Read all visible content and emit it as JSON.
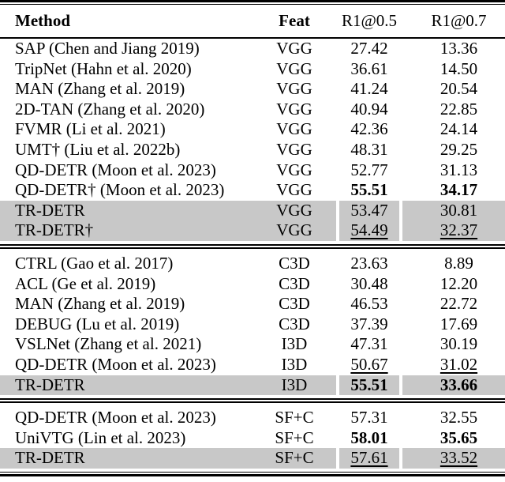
{
  "table": {
    "header": {
      "method": "Method",
      "feat": "Feat",
      "r1_05": "R1@0.5",
      "r1_07": "R1@0.7"
    },
    "colors": {
      "highlight_row": "#c8c8c8",
      "rule": "#000000",
      "text": "#000000",
      "background": "#ffffff"
    },
    "sections": [
      {
        "name": "vgg",
        "rows": [
          {
            "method": "SAP (Chen and Jiang 2019)",
            "feat": "VGG",
            "r1_05": "27.42",
            "r1_07": "13.36",
            "emphasis": "none",
            "highlight": false
          },
          {
            "method": "TripNet (Hahn et al. 2020)",
            "feat": "VGG",
            "r1_05": "36.61",
            "r1_07": "14.50",
            "emphasis": "none",
            "highlight": false
          },
          {
            "method": "MAN (Zhang et al. 2019)",
            "feat": "VGG",
            "r1_05": "41.24",
            "r1_07": "20.54",
            "emphasis": "none",
            "highlight": false
          },
          {
            "method": "2D-TAN (Zhang et al. 2020)",
            "feat": "VGG",
            "r1_05": "40.94",
            "r1_07": "22.85",
            "emphasis": "none",
            "highlight": false
          },
          {
            "method": "FVMR (Li et al. 2021)",
            "feat": "VGG",
            "r1_05": "42.36",
            "r1_07": "24.14",
            "emphasis": "none",
            "highlight": false
          },
          {
            "method": "UMT† (Liu et al. 2022b)",
            "feat": "VGG",
            "r1_05": "48.31",
            "r1_07": "29.25",
            "emphasis": "none",
            "highlight": false
          },
          {
            "method": "QD-DETR (Moon et al. 2023)",
            "feat": "VGG",
            "r1_05": "52.77",
            "r1_07": "31.13",
            "emphasis": "none",
            "highlight": false
          },
          {
            "method": "QD-DETR† (Moon et al. 2023)",
            "feat": "VGG",
            "r1_05": "55.51",
            "r1_07": "34.17",
            "emphasis": "bold",
            "highlight": false
          },
          {
            "method": "TR-DETR",
            "feat": "VGG",
            "r1_05": "53.47",
            "r1_07": "30.81",
            "emphasis": "none",
            "highlight": true
          },
          {
            "method": "TR-DETR†",
            "feat": "VGG",
            "r1_05": "54.49",
            "r1_07": "32.37",
            "emphasis": "underline",
            "highlight": true
          }
        ]
      },
      {
        "name": "c3d-i3d",
        "rows": [
          {
            "method": "CTRL (Gao et al. 2017)",
            "feat": "C3D",
            "r1_05": "23.63",
            "r1_07": "8.89",
            "emphasis": "none",
            "highlight": false
          },
          {
            "method": "ACL (Ge et al. 2019)",
            "feat": "C3D",
            "r1_05": "30.48",
            "r1_07": "12.20",
            "emphasis": "none",
            "highlight": false
          },
          {
            "method": "MAN (Zhang et al. 2019)",
            "feat": "C3D",
            "r1_05": "46.53",
            "r1_07": "22.72",
            "emphasis": "none",
            "highlight": false
          },
          {
            "method": "DEBUG (Lu et al. 2019)",
            "feat": "C3D",
            "r1_05": "37.39",
            "r1_07": "17.69",
            "emphasis": "none",
            "highlight": false
          },
          {
            "method": "VSLNet (Zhang et al. 2021)",
            "feat": "I3D",
            "r1_05": "47.31",
            "r1_07": "30.19",
            "emphasis": "none",
            "highlight": false
          },
          {
            "method": "QD-DETR (Moon et al. 2023)",
            "feat": "I3D",
            "r1_05": "50.67",
            "r1_07": "31.02",
            "emphasis": "underline",
            "highlight": false
          },
          {
            "method": "TR-DETR",
            "feat": "I3D",
            "r1_05": "55.51",
            "r1_07": "33.66",
            "emphasis": "bold",
            "highlight": true
          }
        ]
      },
      {
        "name": "sf-c",
        "rows": [
          {
            "method": "QD-DETR (Moon et al. 2023)",
            "feat": "SF+C",
            "r1_05": "57.31",
            "r1_07": "32.55",
            "emphasis": "none",
            "highlight": false
          },
          {
            "method": "UniVTG (Lin et al. 2023)",
            "feat": "SF+C",
            "r1_05": "58.01",
            "r1_07": "35.65",
            "emphasis": "bold",
            "highlight": false
          },
          {
            "method": "TR-DETR",
            "feat": "SF+C",
            "r1_05": "57.61",
            "r1_07": "33.52",
            "emphasis": "underline",
            "highlight": true
          }
        ]
      }
    ]
  }
}
